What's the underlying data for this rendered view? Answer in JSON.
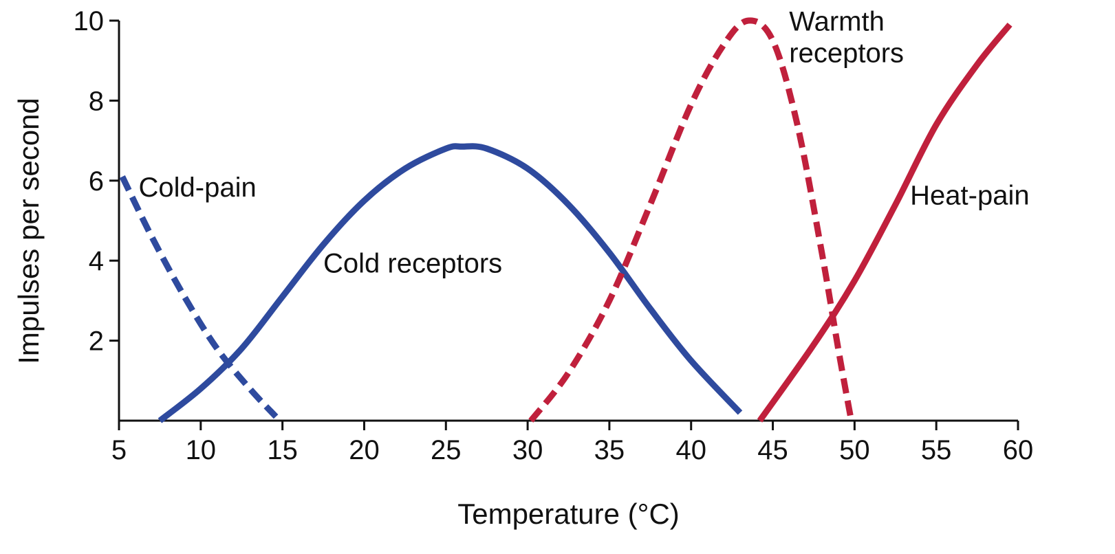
{
  "chart_data": {
    "type": "line",
    "title": "",
    "xlabel": "Temperature (°C)",
    "ylabel": "Impulses per second",
    "xlim": [
      5,
      60
    ],
    "ylim": [
      0,
      10
    ],
    "x_ticks": [
      5,
      10,
      15,
      20,
      25,
      30,
      35,
      40,
      45,
      50,
      55,
      60
    ],
    "y_ticks": [
      2,
      4,
      6,
      8,
      10
    ],
    "grid": false,
    "legend": "none",
    "series": [
      {
        "name": "Cold-pain",
        "color": "#2E4A9E",
        "style": "dashed",
        "x": [
          5.2,
          7,
          9,
          11,
          13,
          14.6
        ],
        "y": [
          6.1,
          4.6,
          3.1,
          1.8,
          0.8,
          0.1
        ]
      },
      {
        "name": "Cold receptors",
        "color": "#2E4A9E",
        "style": "solid",
        "x": [
          7.5,
          10,
          12.5,
          15,
          17.5,
          20,
          22.5,
          25,
          26,
          27.5,
          30,
          32.5,
          35,
          37.5,
          40,
          43
        ],
        "y": [
          0,
          0.8,
          1.8,
          3.1,
          4.4,
          5.5,
          6.3,
          6.8,
          6.85,
          6.8,
          6.3,
          5.4,
          4.2,
          2.8,
          1.5,
          0.2
        ]
      },
      {
        "name": "Warmth receptors",
        "color": "#C0203C",
        "style": "dashed",
        "x": [
          30.2,
          32.5,
          35,
          37.5,
          40,
          42,
          43.5,
          45,
          46.5,
          48,
          49,
          49.8
        ],
        "y": [
          0,
          1.2,
          3.0,
          5.4,
          7.9,
          9.4,
          10.0,
          9.5,
          7.4,
          4.2,
          1.8,
          0
        ]
      },
      {
        "name": "Heat-pain",
        "color": "#C0203C",
        "style": "solid",
        "x": [
          44.2,
          47.5,
          50,
          52.5,
          55,
          57.5,
          59.5
        ],
        "y": [
          0,
          1.9,
          3.5,
          5.4,
          7.4,
          8.9,
          9.9
        ]
      }
    ],
    "annotations": [
      {
        "text": "Cold-pain",
        "x": 6.2,
        "y": 5.6,
        "anchor": "start"
      },
      {
        "text": "Cold receptors",
        "x": 17.5,
        "y": 3.7,
        "anchor": "start"
      },
      {
        "text": "Warmth receptors",
        "lines": [
          "Warmth",
          "receptors"
        ],
        "x": 46.0,
        "y": 9.75,
        "anchor": "start"
      },
      {
        "text": "Heat-pain",
        "x": 53.4,
        "y": 5.4,
        "anchor": "start"
      }
    ]
  }
}
